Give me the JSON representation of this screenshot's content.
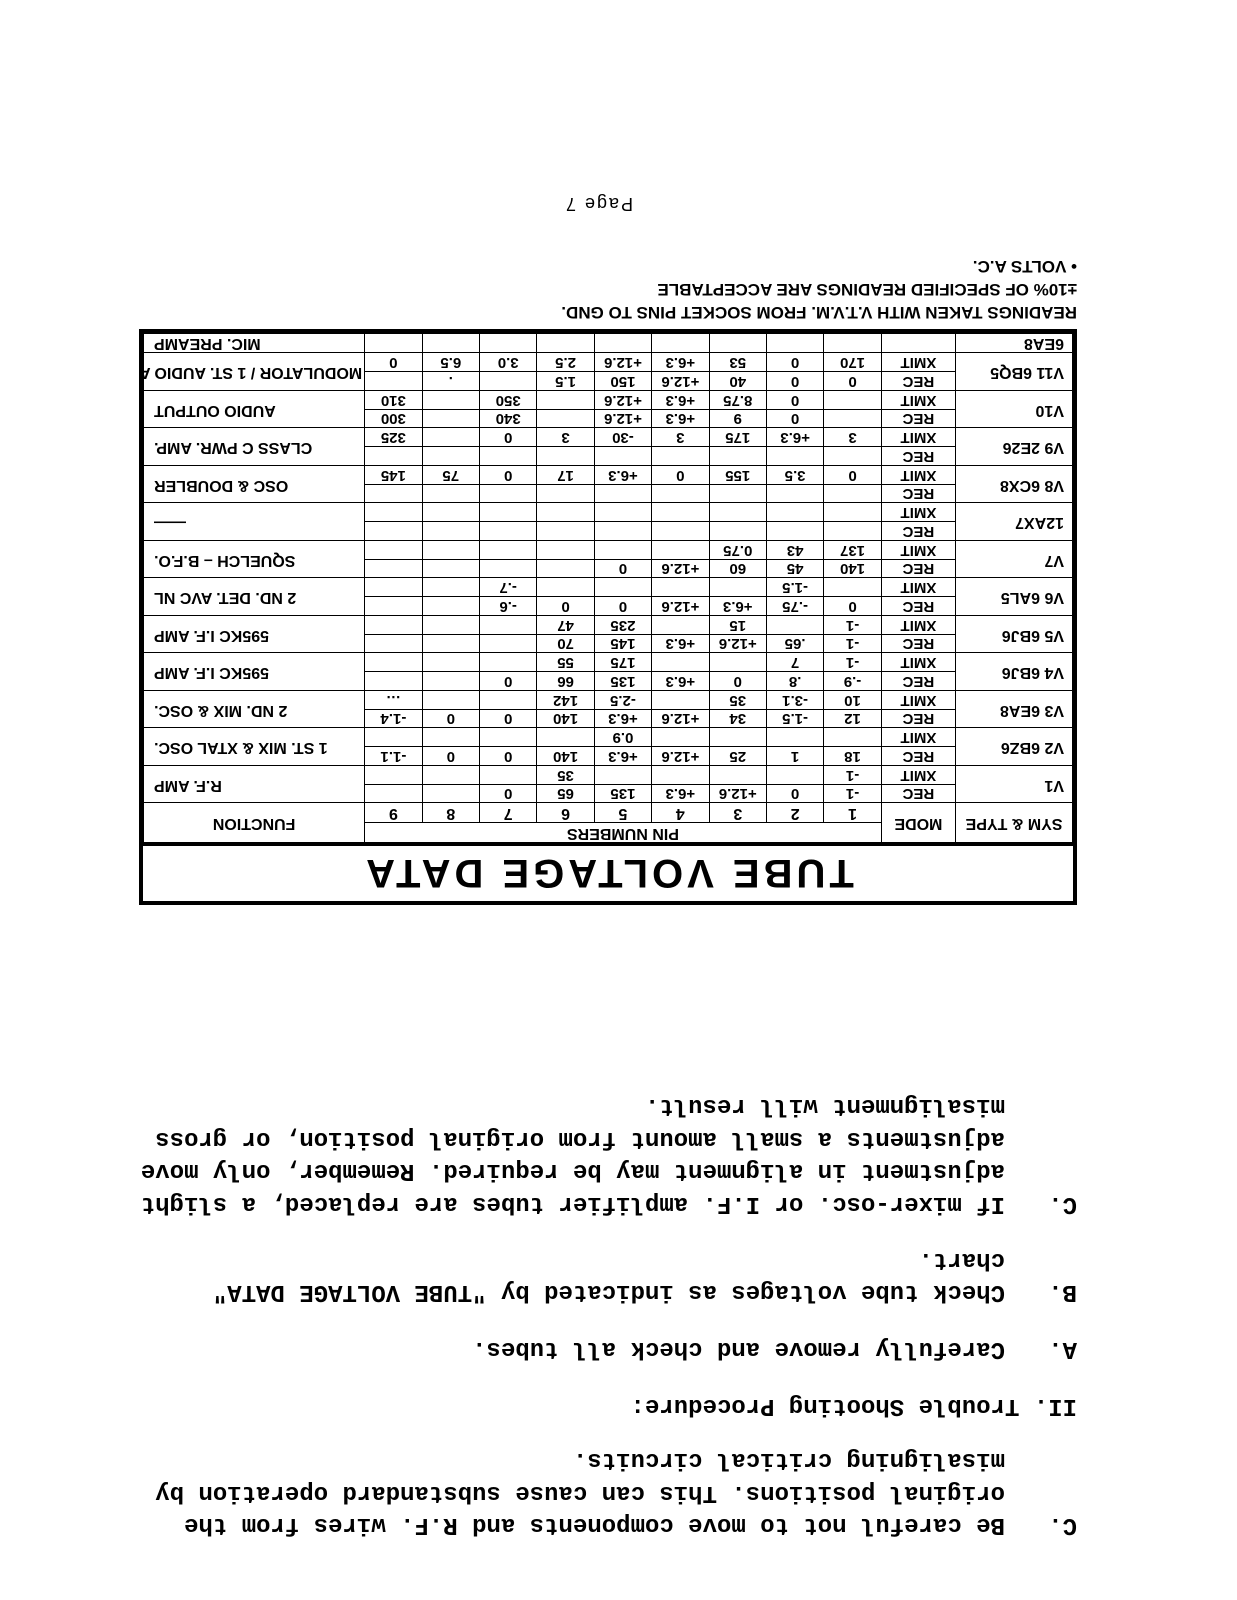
{
  "topText": {
    "itemC_label": "C.",
    "itemC_body": "Be careful not to move components and R.F. wires from the original positions.  This can cause substandard operation by misaligning critical circuits."
  },
  "section2": {
    "heading": "II. Trouble Shooting Procedure:",
    "A_label": "A.",
    "A_body": "Carefully remove and check all tubes.",
    "B_label": "B.",
    "B_body": "Check tube voltages as indicated by \"TUBE VOLTAGE DATA\" chart.",
    "C_label": "C.",
    "C_body": "If mixer-osc. or I.F. amplifier tubes are replaced, a slight adjustment in alignment may be required.  Remember, only move adjustments a small amount from original position, or gross misalignment will result."
  },
  "table": {
    "title": "TUBE   VOLTAGE   DATA",
    "header": {
      "sym": "SYM & TYPE",
      "mode": "MODE",
      "pins_label": "PIN NUMBERS",
      "func": "FUNCTION",
      "pins": [
        "1",
        "2",
        "3",
        "4",
        "5",
        "6",
        "7",
        "8",
        "9"
      ]
    },
    "groups": [
      {
        "sym": "V1",
        "type": "",
        "func": "R.F. AMP",
        "rows": [
          {
            "mode": "REC",
            "p": [
              "-1",
              "0",
              "+12.6",
              "+6.3",
              "135",
              "65",
              "0",
              "",
              ""
            ]
          },
          {
            "mode": "XMIT",
            "p": [
              "-1",
              "",
              "",
              "",
              "",
              "35",
              "",
              "",
              ""
            ]
          }
        ]
      },
      {
        "sym": "V2",
        "type": "6BZ6",
        "func": "1 ST. MIX & XTAL OSC.",
        "rows": [
          {
            "mode": "REC",
            "p": [
              "18",
              "1",
              "25",
              "+12.6",
              "+6.3",
              "140",
              "0",
              "0",
              "-1.1"
            ]
          },
          {
            "mode": "XMIT",
            "p": [
              "",
              "",
              "",
              "",
              "0.9",
              "",
              "",
              "",
              ""
            ]
          }
        ]
      },
      {
        "sym": "V3",
        "type": "6EA8",
        "func": "2 ND. MIX & OSC.",
        "rows": [
          {
            "mode": "REC",
            "p": [
              "12",
              "-1.5",
              "34",
              "+12.6",
              "+6.3",
              "140",
              "0",
              "0",
              "-1.4"
            ]
          },
          {
            "mode": "XMIT",
            "p": [
              "10",
              "-3.1",
              "35",
              "",
              "-2.5",
              "142",
              "",
              "",
              "…"
            ]
          }
        ]
      },
      {
        "sym": "V4",
        "type": "6BJ6",
        "func": "595KC I.F. AMP",
        "rows": [
          {
            "mode": "REC",
            "p": [
              "-.9",
              ".8",
              "0",
              "+6.3",
              "135",
              "66",
              "0",
              "",
              ""
            ]
          },
          {
            "mode": "XMIT",
            "p": [
              "-1",
              "7",
              "",
              "",
              "175",
              "55",
              "",
              "",
              ""
            ]
          }
        ]
      },
      {
        "sym": "V5",
        "type": "6BJ6",
        "func": "595KC I.F. AMP",
        "rows": [
          {
            "mode": "REC",
            "p": [
              "-1",
              ".65",
              "+12.6",
              "+6.3",
              "145",
              "70",
              "",
              "",
              ""
            ]
          },
          {
            "mode": "XMIT",
            "p": [
              "-1",
              "",
              "15",
              "",
              "235",
              "47",
              "",
              "",
              ""
            ]
          }
        ]
      },
      {
        "sym": "V6",
        "type": "6AL5",
        "func": "2 ND. DET. AVC NL",
        "rows": [
          {
            "mode": "REC",
            "p": [
              "0",
              "-.75",
              "+6.3",
              "+12.6",
              "0",
              "0",
              "-.6",
              "",
              ""
            ]
          },
          {
            "mode": "XMIT",
            "p": [
              "",
              "-1.5",
              "",
              "",
              "",
              "",
              "-.7",
              "",
              ""
            ]
          }
        ]
      },
      {
        "sym": "V7",
        "type": "",
        "func": "SQUELCH – B.F.O.",
        "rows": [
          {
            "mode": "REC",
            "p": [
              "140",
              "45",
              "60",
              "+12.6",
              "0",
              "",
              "",
              "",
              ""
            ]
          },
          {
            "mode": "XMIT",
            "p": [
              "137",
              "43",
              "0.75",
              "",
              "",
              "",
              "",
              "",
              ""
            ]
          }
        ]
      },
      {
        "sym": "   ",
        "type": "12AX7",
        "func": "——",
        "rows": [
          {
            "mode": "REC",
            "p": [
              "",
              "",
              "",
              "",
              "",
              "",
              "",
              "",
              ""
            ]
          },
          {
            "mode": "XMIT",
            "p": [
              "",
              "",
              "",
              "",
              "",
              "",
              "",
              "",
              ""
            ]
          }
        ]
      },
      {
        "sym": "V8",
        "type": "6CX8",
        "func": "OSC & DOUBLER",
        "rows": [
          {
            "mode": "REC",
            "p": [
              "",
              "",
              "",
              "",
              "",
              "",
              "",
              "",
              ""
            ]
          },
          {
            "mode": "XMIT",
            "p": [
              "0",
              "3.5",
              "155",
              "0",
              "+6.3",
              "17",
              "0",
              "75",
              "145"
            ]
          }
        ]
      },
      {
        "sym": "V9",
        "type": "2E26",
        "func": "CLASS C PWR. AMP.",
        "rows": [
          {
            "mode": "REC",
            "p": [
              "",
              "",
              "",
              "",
              "",
              "",
              "",
              "",
              ""
            ]
          },
          {
            "mode": "XMIT",
            "p": [
              "3",
              "+6.3",
              "175",
              "3",
              "-30",
              "3",
              "0",
              "",
              "325"
            ]
          }
        ]
      },
      {
        "sym": "V10",
        "type": "",
        "func": "AUDIO OUTPUT",
        "rows": [
          {
            "mode": "REC",
            "p": [
              "",
              "0",
              "9",
              "+6.3",
              "+12.6",
              "",
              "340",
              "",
              "300"
            ]
          },
          {
            "mode": "XMIT",
            "p": [
              "",
              "0",
              "8.75",
              "+6.3",
              "+12.6",
              "",
              "350",
              "",
              "310"
            ]
          }
        ]
      },
      {
        "sym": "V11",
        "type": "6BQ5",
        "func": "MODULATOR / 1 ST. AUDIO AMP",
        "rows": [
          {
            "mode": "REC",
            "p": [
              "0",
              "0",
              "40",
              "+12.6",
              "150",
              "1.5",
              "",
              ".",
              ""
            ]
          },
          {
            "mode": "XMIT",
            "p": [
              "170",
              "0",
              "53",
              "+6.3",
              "+12.6",
              "2.5",
              "3.0",
              "6.5",
              "0"
            ]
          }
        ]
      },
      {
        "sym": "   ",
        "type": "6EA8",
        "func": "MIC. PREAMP",
        "rows": [
          {
            "mode": "",
            "p": [
              "",
              "",
              "",
              "",
              "",
              "",
              "",
              "",
              ""
            ]
          }
        ]
      }
    ]
  },
  "notes": {
    "l1": "READINGS TAKEN WITH V.T.V.M. FROM SOCKET PINS TO GND.",
    "l2": "±10% OF SPECIFIED READINGS ARE ACCEPTABLE",
    "l3": "• VOLTS A.C."
  },
  "pagenum": "Page 7"
}
